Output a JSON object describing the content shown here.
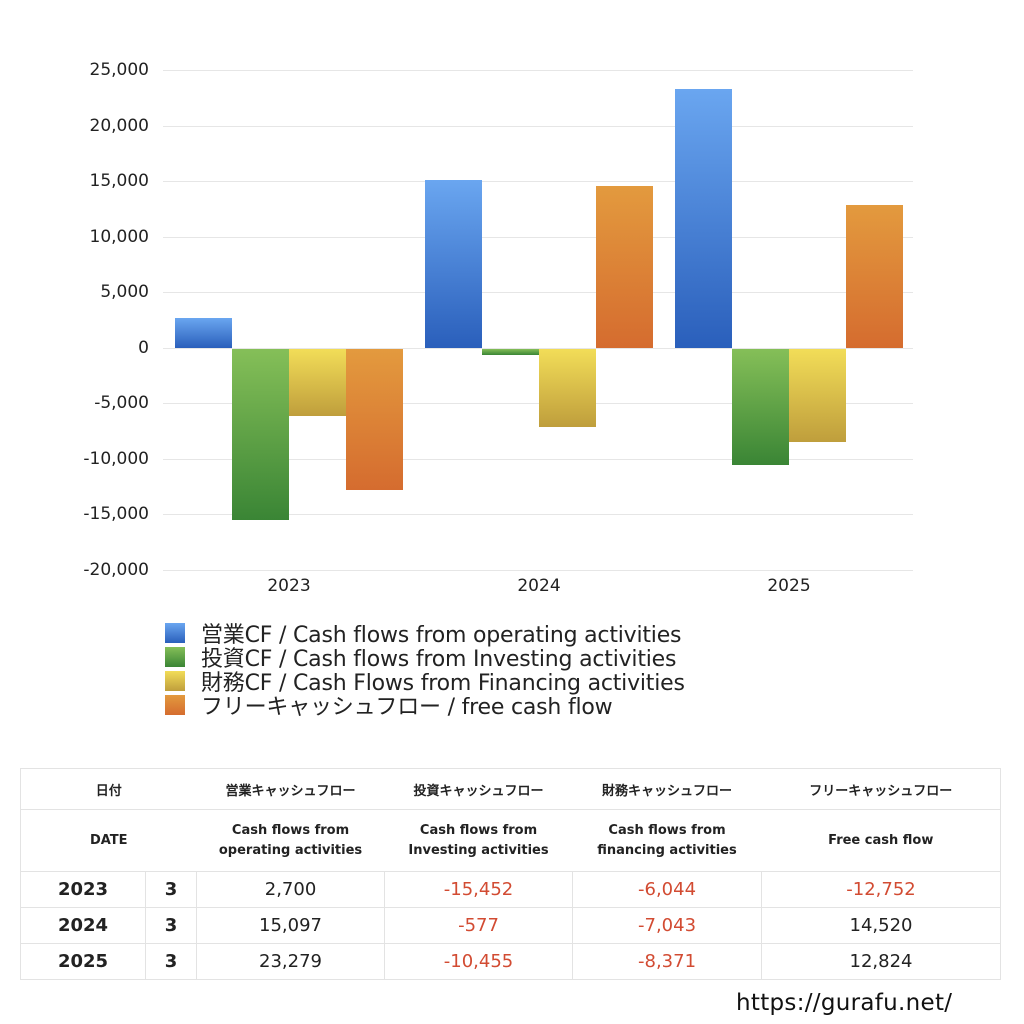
{
  "chart_data": {
    "type": "bar",
    "title": "",
    "xlabel": "",
    "ylabel": "",
    "categories": [
      "2023",
      "2024",
      "2025"
    ],
    "series": [
      {
        "name": "営業CF / Cash flows from operating activities",
        "color_top": "#6aa6f0",
        "color_bottom": "#2a5fbb",
        "values": [
          2700,
          15097,
          23279
        ]
      },
      {
        "name": "投資CF / Cash flows from Investing activities",
        "color_top": "#85bf58",
        "color_bottom": "#3a8535",
        "values": [
          -15452,
          -577,
          -10455
        ]
      },
      {
        "name": "財務CF / Cash Flows from Financing activities",
        "color_top": "#f2dd58",
        "color_bottom": "#bf9e3c",
        "values": [
          -6044,
          -7043,
          -8371
        ]
      },
      {
        "name": "フリーキャッシュフロー / free cash flow",
        "color_top": "#e39a3e",
        "color_bottom": "#d56c2f",
        "values": [
          -12752,
          14520,
          12824
        ]
      }
    ],
    "ylim": [
      -20000,
      25000
    ],
    "yticks": [
      "25,000",
      "20,000",
      "15,000",
      "10,000",
      "5,000",
      "0",
      "-5,000",
      "-10,000",
      "-15,000",
      "-20,000"
    ],
    "ytick_values": [
      25000,
      20000,
      15000,
      10000,
      5000,
      0,
      -5000,
      -10000,
      -15000,
      -20000
    ],
    "grid": true,
    "legend_position": "bottom-left"
  },
  "legend": [
    {
      "label": "営業CF / Cash flows from operating activities",
      "color": "#4a86de"
    },
    {
      "label": "投資CF / Cash flows from Investing activities",
      "color": "#5ea448"
    },
    {
      "label": "財務CF / Cash Flows from Financing activities",
      "color": "#e3c84c"
    },
    {
      "label": "フリーキャッシュフロー / free cash flow",
      "color": "#de8236"
    }
  ],
  "table": {
    "header_ja": {
      "date": "日付",
      "operating": "営業キャッシュフロー",
      "investing": "投資キャッシュフロー",
      "financing": "財務キャッシュフロー",
      "free": "フリーキャッシュフロー"
    },
    "header_en": {
      "date": "DATE",
      "operating_1": "Cash flows from",
      "operating_2": "operating activities",
      "investing_1": "Cash flows from",
      "investing_2": "Investing activities",
      "financing_1": "Cash flows from",
      "financing_2": "financing activities",
      "free": "Free cash flow"
    },
    "rows": [
      {
        "year": "2023",
        "month": "3",
        "operating": "2,700",
        "investing": "-15,452",
        "financing": "-6,044",
        "free": "-12,752"
      },
      {
        "year": "2024",
        "month": "3",
        "operating": "15,097",
        "investing": "-577",
        "financing": "-7,043",
        "free": "14,520"
      },
      {
        "year": "2025",
        "month": "3",
        "operating": "23,279",
        "investing": "-10,455",
        "financing": "-8,371",
        "free": "12,824"
      }
    ],
    "negative_color": "#d24b32"
  },
  "footer": {
    "url": "https://gurafu.net/"
  }
}
